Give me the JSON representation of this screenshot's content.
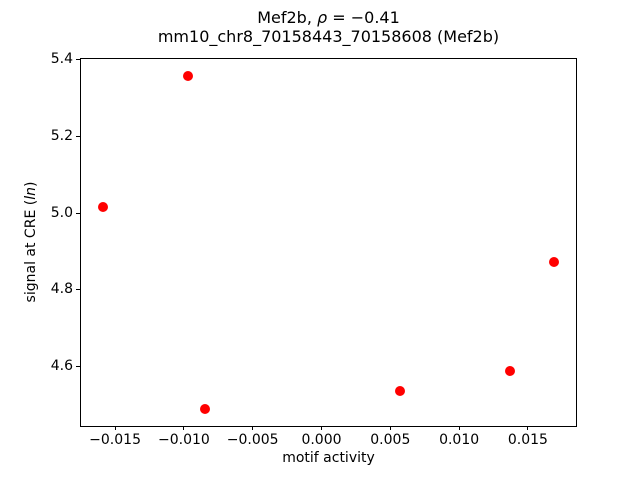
{
  "figure": {
    "title": {
      "line1_pre": "Mef2b, ",
      "line1_rho": "ρ",
      "line1_post": " = −0.41",
      "line2": "mm10_chr8_70158443_70158608 (Mef2b)"
    },
    "xlabel": "motif activity",
    "ylabel": {
      "pre": "signal at CRE (",
      "italic": "ln",
      "post": ")"
    }
  },
  "chart_data": {
    "type": "scatter",
    "title": "Mef2b, ρ = −0.41",
    "subtitle": "mm10_chr8_70158443_70158608 (Mef2b)",
    "xlabel": "motif activity",
    "ylabel": "signal at CRE (ln)",
    "marker_color": "#ff0000",
    "marker_shape": "circle",
    "grid": false,
    "legend": null,
    "points": [
      {
        "x": -0.0159,
        "y": 5.017
      },
      {
        "x": -0.0097,
        "y": 5.359
      },
      {
        "x": -0.0085,
        "y": 4.489
      },
      {
        "x": 0.0057,
        "y": 4.535
      },
      {
        "x": 0.0137,
        "y": 4.587
      },
      {
        "x": 0.0169,
        "y": 4.873
      }
    ],
    "xlim": [
      -0.01755,
      0.01853
    ],
    "ylim": [
      4.444,
      5.406
    ],
    "xticks": {
      "values": [
        -0.015,
        -0.01,
        -0.005,
        0.0,
        0.005,
        0.01,
        0.015
      ],
      "labels": [
        "−0.015",
        "−0.010",
        "−0.005",
        "0.000",
        "0.005",
        "0.010",
        "0.015"
      ]
    },
    "yticks": {
      "values": [
        4.6,
        4.8,
        5.0,
        5.2,
        5.4
      ],
      "labels": [
        "4.6",
        "4.8",
        "5.0",
        "5.2",
        "5.4"
      ]
    }
  }
}
